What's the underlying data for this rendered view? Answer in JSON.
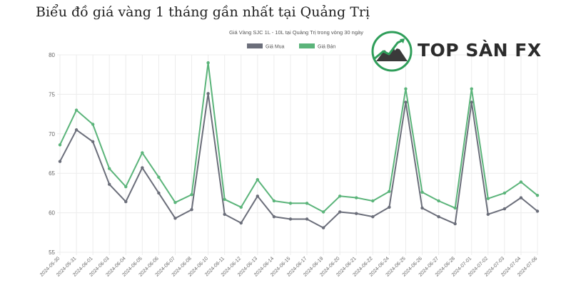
{
  "page": {
    "heading": "Biểu đồ giá vàng 1 tháng gần nhất tại Quảng Trị"
  },
  "logo": {
    "text": "TOP SÀN FX",
    "icon": "mountain-chart-logo-icon"
  },
  "colors": {
    "buy": "#6b6e7a",
    "sell": "#5bb47a"
  },
  "chart_data": {
    "type": "line",
    "title": "Giá Vàng SJC 1L - 10L tại Quảng Trị trong vòng 30 ngày",
    "xlabel": "",
    "ylabel": "",
    "ylim": [
      55,
      80
    ],
    "yticks": [
      55,
      60,
      65,
      70,
      75,
      80
    ],
    "grid": true,
    "legend_position": "top-center",
    "x": [
      "2024-05-30",
      "2024-05-31",
      "2024-06-01",
      "2024-06-03",
      "2024-06-04",
      "2024-06-05",
      "2024-06-06",
      "2024-06-07",
      "2024-06-08",
      "2024-06-10",
      "2024-06-11",
      "2024-06-12",
      "2024-06-13",
      "2024-06-14",
      "2024-06-15",
      "2024-06-17",
      "2024-06-19",
      "2024-06-20",
      "2024-06-21",
      "2024-06-22",
      "2024-06-24",
      "2024-06-25",
      "2024-06-26",
      "2024-06-27",
      "2024-06-28",
      "2024-07-01",
      "2024-07-02",
      "2024-07-03",
      "2024-07-04",
      "2024-07-06"
    ],
    "series": [
      {
        "name": "Giá Mua",
        "color": "#6b6e7a",
        "values": [
          66.5,
          70.5,
          69.0,
          63.6,
          61.4,
          65.7,
          62.5,
          59.3,
          60.4,
          75.1,
          59.8,
          58.7,
          62.1,
          59.5,
          59.2,
          59.2,
          58.1,
          60.1,
          59.9,
          59.5,
          60.7,
          74.0,
          60.6,
          59.5,
          58.6,
          74.0,
          59.8,
          60.5,
          61.9,
          60.2
        ]
      },
      {
        "name": "Giá Bán",
        "color": "#5bb47a",
        "values": [
          68.6,
          73.0,
          71.2,
          65.6,
          63.3,
          67.6,
          64.5,
          61.3,
          62.3,
          79.0,
          61.7,
          60.7,
          64.2,
          61.5,
          61.2,
          61.2,
          60.1,
          62.1,
          61.9,
          61.5,
          62.7,
          75.7,
          62.6,
          61.5,
          60.6,
          75.7,
          61.8,
          62.5,
          63.9,
          62.2
        ]
      }
    ]
  }
}
